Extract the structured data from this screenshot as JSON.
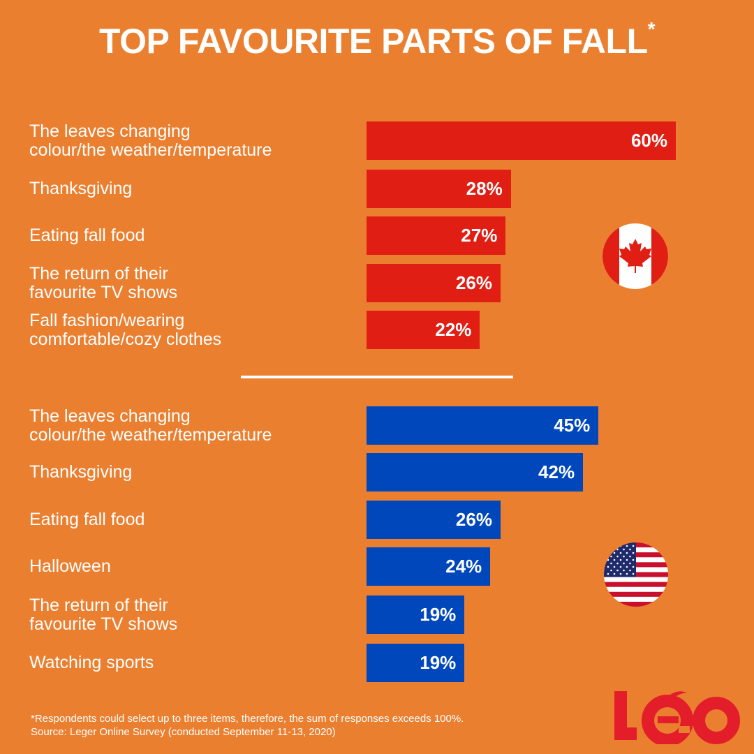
{
  "title": "TOP FAVOURITE PARTS OF FALL",
  "title_mark": "*",
  "chart_data": [
    {
      "type": "bar",
      "orientation": "horizontal",
      "country": "Canada",
      "flag_icon": "canada-flag-icon",
      "color": "#e01e14",
      "categories": [
        "The leaves changing colour/the weather/temperature",
        "Thanksgiving",
        "Eating fall food",
        "The return of their favourite TV shows",
        "Fall fashion/wearing comfortable/cozy clothes"
      ],
      "label_lines": [
        [
          "The leaves changing",
          "colour/the weather/temperature"
        ],
        [
          "Thanksgiving"
        ],
        [
          "Eating fall food"
        ],
        [
          "The return of their",
          "favourite TV shows"
        ],
        [
          "Fall fashion/wearing",
          "comfortable/cozy clothes"
        ]
      ],
      "values": [
        60,
        28,
        27,
        26,
        22
      ],
      "data_labels": [
        "60%",
        "28%",
        "27%",
        "26%",
        "22%"
      ],
      "xlim": [
        0,
        100
      ]
    },
    {
      "type": "bar",
      "orientation": "horizontal",
      "country": "United States",
      "flag_icon": "usa-flag-icon",
      "color": "#0047bb",
      "categories": [
        "The leaves changing colour/the weather/temperature",
        "Thanksgiving",
        "Eating fall food",
        "Halloween",
        "The return of their favourite TV shows",
        "Watching sports"
      ],
      "label_lines": [
        [
          "The leaves changing",
          "colour/the weather/temperature"
        ],
        [
          "Thanksgiving"
        ],
        [
          "Eating fall food"
        ],
        [
          "Halloween"
        ],
        [
          "The return of their",
          "favourite TV shows"
        ],
        [
          "Watching sports"
        ]
      ],
      "values": [
        45,
        42,
        26,
        24,
        19,
        19
      ],
      "data_labels": [
        "45%",
        "42%",
        "26%",
        "24%",
        "19%",
        "19%"
      ],
      "xlim": [
        0,
        100
      ]
    }
  ],
  "footnote": "*Respondents could select up to three items, therefore, the sum of responses exceeds 100%.",
  "source": "Source: Leger Online Survey (conducted September 11-13, 2020)",
  "logo": "Léo",
  "background_color": "#eb7f30"
}
